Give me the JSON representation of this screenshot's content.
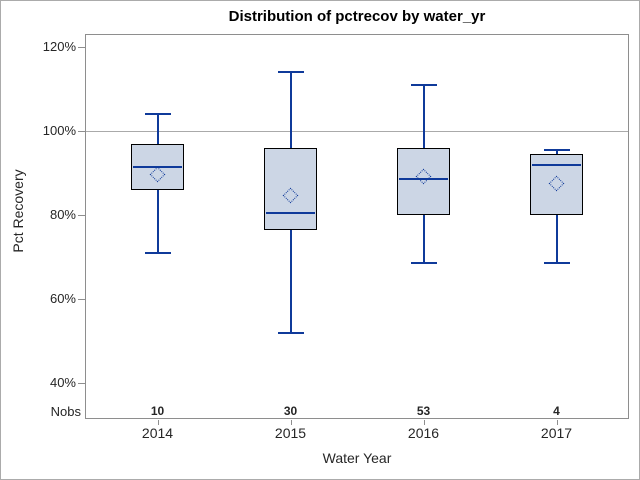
{
  "title": "Distribution of pctrecov by water_yr",
  "y_axis": {
    "label": "Pct Recovery",
    "tick_labels": [
      "120%",
      "100%",
      "80%",
      "60%",
      "40%"
    ],
    "tick_values": [
      120,
      100,
      80,
      60,
      40
    ]
  },
  "x_axis": {
    "label": "Water Year",
    "categories": [
      "2014",
      "2015",
      "2016",
      "2017"
    ]
  },
  "nobs": {
    "label": "Nobs",
    "values": [
      "10",
      "30",
      "53",
      "4"
    ]
  },
  "chart_data": {
    "type": "box",
    "title": "Distribution of pctrecov by water_yr",
    "xlabel": "Water Year",
    "ylabel": "Pct Recovery",
    "categories": [
      "2014",
      "2015",
      "2016",
      "2017"
    ],
    "y_tick_values_pct": [
      40,
      60,
      80,
      100,
      120
    ],
    "y_tick_labels": [
      "40%",
      "60%",
      "80%",
      "100%",
      "120%"
    ],
    "axis_value_range_pct": [
      31.5,
      123
    ],
    "reference_line_pct": 100,
    "grid": "off",
    "nobs_row_label": "Nobs",
    "nobs": [
      10,
      30,
      53,
      4
    ],
    "series": [
      {
        "category": "2014",
        "n": 10,
        "whisker_low": 71,
        "q1": 86,
        "median": 91.5,
        "mean": 89.5,
        "q3": 97,
        "whisker_high": 104
      },
      {
        "category": "2015",
        "n": 30,
        "whisker_low": 52,
        "q1": 76.5,
        "median": 80.5,
        "mean": 84.5,
        "q3": 96,
        "whisker_high": 114
      },
      {
        "category": "2016",
        "n": 53,
        "whisker_low": 68.5,
        "q1": 80,
        "median": 88.5,
        "mean": 89,
        "q3": 96,
        "whisker_high": 111
      },
      {
        "category": "2017",
        "n": 4,
        "whisker_low": 68.5,
        "q1": 80,
        "median": 92,
        "mean": 87.5,
        "q3": 94.5,
        "whisker_high": 95.5
      }
    ],
    "colors": {
      "box_fill": "#ccd6e5",
      "box_border": "#000000",
      "whisker_median_mean": "#0f3a9a",
      "reference_line": "#aaaaaa",
      "plot_border": "#8e8e8e",
      "text": "#262626"
    }
  }
}
